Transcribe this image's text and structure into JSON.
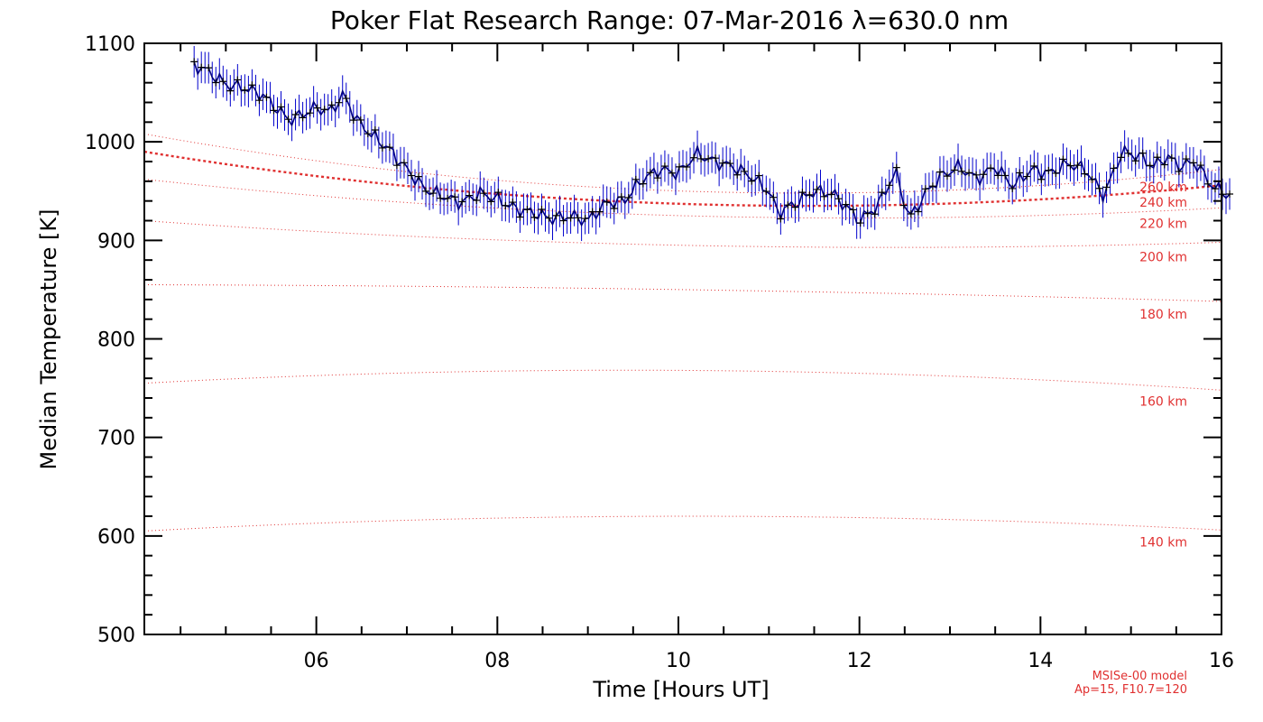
{
  "chart_data": {
    "type": "line",
    "title": "Poker Flat Research Range: 07-Mar-2016 λ=630.0 nm",
    "xlabel": "Time [Hours UT]",
    "ylabel": "Median Temperature [K]",
    "xlim": [
      4.1,
      16.0
    ],
    "ylim": [
      500,
      1100
    ],
    "xticks": [
      6,
      8,
      10,
      12,
      14,
      16
    ],
    "xtick_labels": [
      "06",
      "08",
      "10",
      "12",
      "14",
      "16"
    ],
    "yticks": [
      500,
      600,
      700,
      800,
      900,
      1000,
      1100
    ],
    "ytick_labels": [
      "500",
      "600",
      "700",
      "800",
      "900",
      "1000",
      "1100"
    ],
    "grid": false,
    "series": [
      {
        "name": "Median Temperature",
        "color": "#000080",
        "error_color": "#0000cc",
        "error_bar_K": 16,
        "anchors": [
          [
            4.65,
            1078
          ],
          [
            4.8,
            1072
          ],
          [
            5.0,
            1058
          ],
          [
            5.2,
            1055
          ],
          [
            5.4,
            1048
          ],
          [
            5.55,
            1035
          ],
          [
            5.7,
            1022
          ],
          [
            5.85,
            1028
          ],
          [
            6.0,
            1035
          ],
          [
            6.15,
            1030
          ],
          [
            6.3,
            1048
          ],
          [
            6.45,
            1022
          ],
          [
            6.6,
            1008
          ],
          [
            6.8,
            993
          ],
          [
            7.0,
            972
          ],
          [
            7.2,
            952
          ],
          [
            7.4,
            945
          ],
          [
            7.6,
            938
          ],
          [
            7.8,
            948
          ],
          [
            8.0,
            942
          ],
          [
            8.2,
            932
          ],
          [
            8.4,
            928
          ],
          [
            8.6,
            922
          ],
          [
            8.8,
            925
          ],
          [
            9.0,
            920
          ],
          [
            9.2,
            938
          ],
          [
            9.4,
            940
          ],
          [
            9.6,
            962
          ],
          [
            9.8,
            972
          ],
          [
            10.0,
            968
          ],
          [
            10.2,
            988
          ],
          [
            10.4,
            980
          ],
          [
            10.6,
            975
          ],
          [
            10.8,
            965
          ],
          [
            11.0,
            950
          ],
          [
            11.1,
            928
          ],
          [
            11.3,
            938
          ],
          [
            11.5,
            950
          ],
          [
            11.7,
            948
          ],
          [
            11.9,
            930
          ],
          [
            12.0,
            920
          ],
          [
            12.2,
            935
          ],
          [
            12.4,
            970
          ],
          [
            12.55,
            922
          ],
          [
            12.75,
            950
          ],
          [
            12.9,
            965
          ],
          [
            13.1,
            975
          ],
          [
            13.3,
            962
          ],
          [
            13.5,
            975
          ],
          [
            13.7,
            955
          ],
          [
            13.9,
            972
          ],
          [
            14.1,
            968
          ],
          [
            14.3,
            978
          ],
          [
            14.5,
            972
          ],
          [
            14.7,
            945
          ],
          [
            14.9,
            990
          ],
          [
            15.1,
            985
          ],
          [
            15.25,
            975
          ],
          [
            15.4,
            985
          ],
          [
            15.55,
            975
          ],
          [
            15.7,
            980
          ],
          [
            15.9,
            955
          ],
          [
            16.1,
            945
          ]
        ]
      }
    ],
    "model_curves": [
      {
        "label": "140 km",
        "start": 605,
        "mid": 620,
        "end": 606,
        "style": "dotted"
      },
      {
        "label": "160 km",
        "start": 755,
        "mid": 768,
        "end": 748,
        "style": "dotted"
      },
      {
        "label": "180 km",
        "start": 855,
        "mid": 850,
        "end": 838,
        "style": "dotted"
      },
      {
        "label": "200 km",
        "start": 920,
        "mid": 895,
        "end": 898,
        "style": "dotted"
      },
      {
        "label": "220 km",
        "start": 962,
        "mid": 925,
        "end": 933,
        "style": "dotted"
      },
      {
        "label": "240 km",
        "start": 990,
        "mid": 937,
        "end": 956,
        "style": "dashed"
      },
      {
        "label": "260 km",
        "start": 1008,
        "mid": 950,
        "end": 972,
        "style": "dotted"
      }
    ],
    "model_color": "#e03030",
    "annotation": [
      "MSISe-00 model",
      "Ap=15, F10.7=120"
    ]
  }
}
